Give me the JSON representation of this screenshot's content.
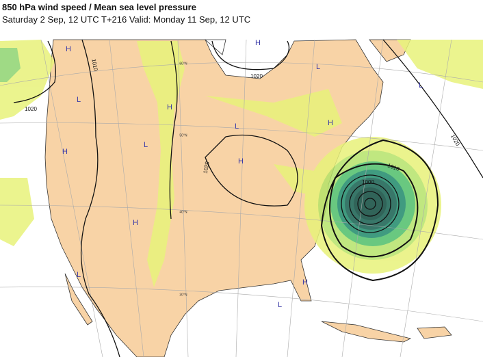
{
  "header": {
    "title": "850 hPa wind speed / Mean sea level pressure",
    "subtitle": "Saturday 2 Sep, 12 UTC T+216 Valid: Monday 11 Sep, 12 UTC"
  },
  "map": {
    "isobar_labels": [
      "1010",
      "1020",
      "1020",
      "1020",
      "1010",
      "1000",
      "1020"
    ],
    "pressure_centers": [
      "H",
      "H",
      "L",
      "L",
      "L",
      "H",
      "H",
      "L",
      "H",
      "L",
      "H",
      "H",
      "L",
      "H",
      "L"
    ],
    "latitude_labels": [
      "60°N",
      "50°N",
      "40°N",
      "30°N"
    ]
  }
}
